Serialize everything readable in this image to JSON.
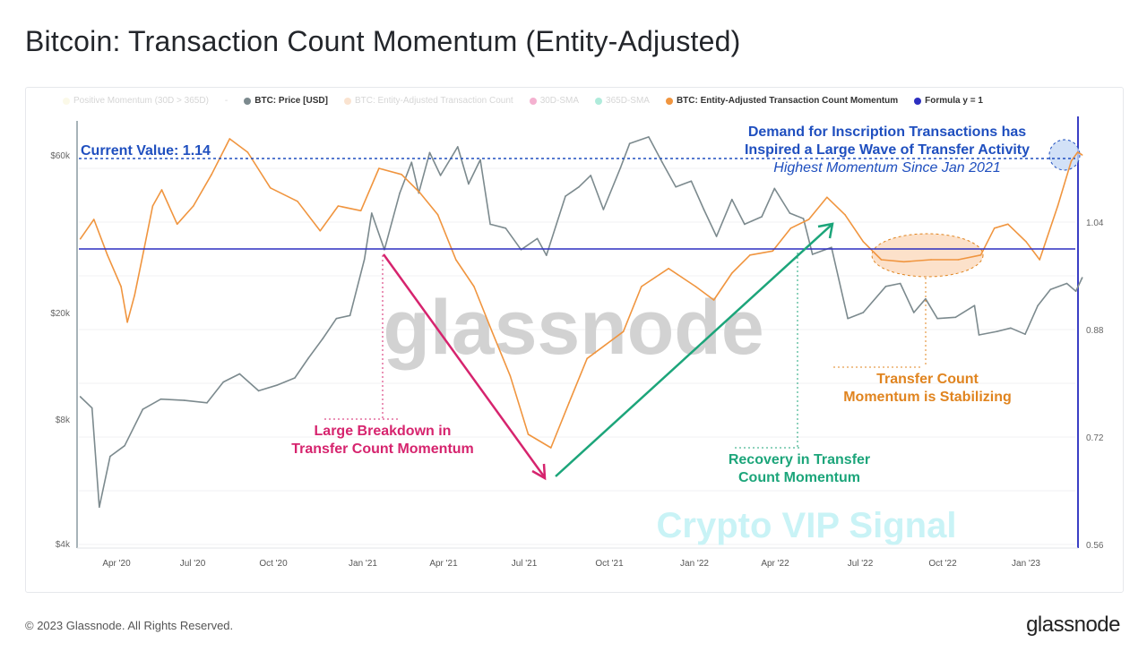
{
  "header": {
    "title": "Bitcoin: Transaction Count Momentum (Entity-Adjusted)"
  },
  "legend": [
    {
      "label": "Positive Momentum (30D > 365D)",
      "color": "#f6eec0",
      "active": false
    },
    {
      "label": "-",
      "color": "",
      "active": false
    },
    {
      "label": "BTC: Price [USD]",
      "color": "#7c8a8e",
      "active": true
    },
    {
      "label": "BTC: Entity-Adjusted Transaction Count",
      "color": "#f3b27a",
      "active": false
    },
    {
      "label": "30D-SMA",
      "color": "#e0237a",
      "active": false
    },
    {
      "label": "365D-SMA",
      "color": "#1cc79a",
      "active": false
    },
    {
      "label": "BTC: Entity-Adjusted Transaction Count Momentum",
      "color": "#f0953f",
      "active": true
    },
    {
      "label": "Formula y = 1",
      "color": "#2d2fc0",
      "active": true
    }
  ],
  "chart_data": {
    "type": "line",
    "xlabel": "",
    "ylabel_left": "",
    "ylabel_right": "",
    "x_ticks": [
      "Apr '20",
      "Jul '20",
      "Oct '20",
      "Jan '21",
      "Apr '21",
      "Jul '21",
      "Oct '21",
      "Jan '22",
      "Apr '22",
      "Jul '22",
      "Oct '22",
      "Jan '23"
    ],
    "y_left_ticks": [
      "$4k",
      "$8k",
      "$20k",
      "$60k"
    ],
    "y_left_scale": "log",
    "y_right_ticks": [
      "0.56",
      "0.72",
      "0.88",
      "1.04"
    ],
    "y_right_range": [
      0.56,
      1.2
    ],
    "grid": true,
    "legend_position": "top",
    "series": [
      {
        "name": "BTC: Price [USD]",
        "axis": "left",
        "color": "#7c8a8e",
        "points": [
          [
            "2020-02-21",
            9700
          ],
          [
            "2020-03-05",
            8800
          ],
          [
            "2020-03-13",
            4900
          ],
          [
            "2020-03-25",
            6500
          ],
          [
            "2020-04-10",
            6900
          ],
          [
            "2020-04-30",
            8700
          ],
          [
            "2020-05-20",
            9500
          ],
          [
            "2020-06-15",
            9400
          ],
          [
            "2020-07-10",
            9200
          ],
          [
            "2020-07-28",
            11000
          ],
          [
            "2020-08-15",
            11800
          ],
          [
            "2020-09-05",
            10200
          ],
          [
            "2020-09-25",
            10700
          ],
          [
            "2020-10-15",
            11400
          ],
          [
            "2020-10-30",
            13500
          ],
          [
            "2020-11-15",
            16000
          ],
          [
            "2020-11-30",
            19000
          ],
          [
            "2020-12-15",
            19500
          ],
          [
            "2020-12-31",
            29000
          ],
          [
            "2021-01-08",
            40000
          ],
          [
            "2021-01-22",
            31000
          ],
          [
            "2021-02-08",
            46000
          ],
          [
            "2021-02-21",
            57000
          ],
          [
            "2021-03-01",
            46000
          ],
          [
            "2021-03-13",
            61000
          ],
          [
            "2021-03-25",
            52000
          ],
          [
            "2021-04-13",
            63500
          ],
          [
            "2021-04-25",
            49000
          ],
          [
            "2021-05-08",
            58000
          ],
          [
            "2021-05-19",
            37000
          ],
          [
            "2021-06-05",
            36000
          ],
          [
            "2021-06-22",
            31000
          ],
          [
            "2021-07-10",
            33500
          ],
          [
            "2021-07-20",
            29800
          ],
          [
            "2021-08-10",
            45000
          ],
          [
            "2021-08-25",
            48000
          ],
          [
            "2021-09-07",
            52000
          ],
          [
            "2021-09-21",
            41000
          ],
          [
            "2021-10-10",
            55000
          ],
          [
            "2021-10-20",
            65000
          ],
          [
            "2021-11-10",
            68000
          ],
          [
            "2021-11-25",
            57000
          ],
          [
            "2021-12-10",
            48000
          ],
          [
            "2021-12-27",
            50000
          ],
          [
            "2022-01-10",
            41000
          ],
          [
            "2022-01-24",
            34000
          ],
          [
            "2022-02-10",
            44000
          ],
          [
            "2022-02-24",
            37000
          ],
          [
            "2022-03-15",
            39000
          ],
          [
            "2022-03-29",
            47500
          ],
          [
            "2022-04-15",
            40000
          ],
          [
            "2022-04-30",
            38500
          ],
          [
            "2022-05-10",
            30000
          ],
          [
            "2022-05-31",
            31500
          ],
          [
            "2022-06-18",
            19000
          ],
          [
            "2022-07-05",
            20000
          ],
          [
            "2022-07-30",
            24000
          ],
          [
            "2022-08-15",
            24500
          ],
          [
            "2022-08-30",
            20000
          ],
          [
            "2022-09-12",
            22000
          ],
          [
            "2022-09-25",
            19000
          ],
          [
            "2022-10-15",
            19200
          ],
          [
            "2022-11-05",
            21000
          ],
          [
            "2022-11-10",
            16500
          ],
          [
            "2022-11-30",
            17000
          ],
          [
            "2022-12-15",
            17500
          ],
          [
            "2022-12-31",
            16600
          ],
          [
            "2023-01-14",
            21000
          ],
          [
            "2023-01-28",
            23500
          ],
          [
            "2023-02-15",
            24500
          ],
          [
            "2023-02-25",
            23200
          ],
          [
            "2023-03-04",
            25500
          ]
        ]
      },
      {
        "name": "BTC: Entity-Adjusted Transaction Count Momentum",
        "axis": "right",
        "color": "#f0953f",
        "points": [
          [
            "2020-02-21",
            1.015
          ],
          [
            "2020-03-07",
            1.044
          ],
          [
            "2020-03-22",
            0.991
          ],
          [
            "2020-04-06",
            0.944
          ],
          [
            "2020-04-13",
            0.891
          ],
          [
            "2020-04-21",
            0.931
          ],
          [
            "2020-05-01",
            0.997
          ],
          [
            "2020-05-11",
            1.064
          ],
          [
            "2020-05-21",
            1.088
          ],
          [
            "2020-06-07",
            1.037
          ],
          [
            "2020-06-25",
            1.064
          ],
          [
            "2020-07-15",
            1.111
          ],
          [
            "2020-08-04",
            1.164
          ],
          [
            "2020-08-24",
            1.144
          ],
          [
            "2020-09-18",
            1.091
          ],
          [
            "2020-10-18",
            1.071
          ],
          [
            "2020-11-12",
            1.027
          ],
          [
            "2020-12-02",
            1.064
          ],
          [
            "2020-12-27",
            1.057
          ],
          [
            "2021-01-16",
            1.12
          ],
          [
            "2021-02-10",
            1.111
          ],
          [
            "2021-03-02",
            1.084
          ],
          [
            "2021-03-22",
            1.051
          ],
          [
            "2021-04-11",
            0.984
          ],
          [
            "2021-05-01",
            0.944
          ],
          [
            "2021-05-21",
            0.877
          ],
          [
            "2021-06-10",
            0.811
          ],
          [
            "2021-06-30",
            0.724
          ],
          [
            "2021-07-25",
            0.704
          ],
          [
            "2021-08-14",
            0.771
          ],
          [
            "2021-09-03",
            0.837
          ],
          [
            "2021-09-23",
            0.857
          ],
          [
            "2021-10-13",
            0.877
          ],
          [
            "2021-11-02",
            0.944
          ],
          [
            "2021-12-02",
            0.971
          ],
          [
            "2022-01-01",
            0.944
          ],
          [
            "2022-01-21",
            0.924
          ],
          [
            "2022-02-10",
            0.964
          ],
          [
            "2022-03-02",
            0.991
          ],
          [
            "2022-03-27",
            0.997
          ],
          [
            "2022-04-16",
            1.031
          ],
          [
            "2022-05-06",
            1.044
          ],
          [
            "2022-05-26",
            1.077
          ],
          [
            "2022-06-15",
            1.051
          ],
          [
            "2022-07-05",
            1.011
          ],
          [
            "2022-07-25",
            0.984
          ],
          [
            "2022-08-19",
            0.981
          ],
          [
            "2022-09-18",
            0.984
          ],
          [
            "2022-10-18",
            0.984
          ],
          [
            "2022-11-12",
            0.991
          ],
          [
            "2022-11-27",
            1.031
          ],
          [
            "2022-12-12",
            1.037
          ],
          [
            "2023-01-01",
            1.011
          ],
          [
            "2023-01-16",
            0.984
          ],
          [
            "2023-02-05",
            1.064
          ],
          [
            "2023-02-20",
            1.131
          ],
          [
            "2023-02-27",
            1.144
          ],
          [
            "2023-03-04",
            1.14
          ]
        ]
      },
      {
        "name": "Formula y = 1",
        "axis": "right",
        "color": "#2d2fc0",
        "value": 1
      }
    ],
    "annotations": {
      "current_value": "Current Value: 1.14",
      "top_line1": "Demand for Inscription Transactions has",
      "top_line2": "Inspired a Large Wave of Transfer Activity",
      "top_line3": "Highest Momentum Since Jan 2021",
      "breakdown_line1": "Large Breakdown in",
      "breakdown_line2": "Transfer Count Momentum",
      "recovery_line1": "Recovery in Transfer",
      "recovery_line2": "Count Momentum",
      "stabilizing_line1": "Transfer Count",
      "stabilizing_line2": "Momentum is Stabilizing",
      "colors": {
        "blue": "#1f4fbf",
        "pink": "#d6246e",
        "green": "#1ca57a",
        "orange": "#e0841f"
      }
    },
    "watermarks": [
      "glassnode",
      "Crypto VIP Signal"
    ]
  },
  "footer": {
    "copyright": "© 2023 Glassnode. All Rights Reserved.",
    "logo": "glassnode"
  }
}
